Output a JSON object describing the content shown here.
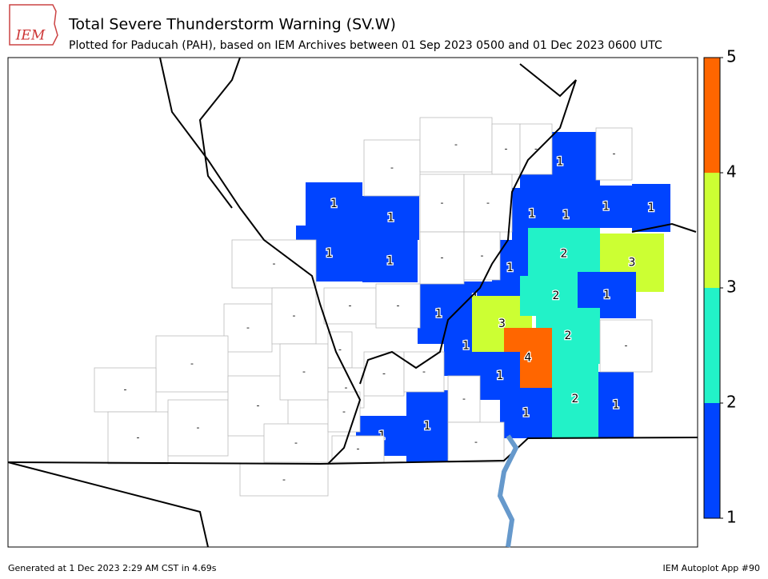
{
  "header": {
    "logo": "IEM",
    "title": "Total Severe Thunderstorm Warning (SV.W)",
    "subtitle": "Plotted for Paducah (PAH), based on IEM Archives  between 01 Sep 2023 0500 and 01 Dec 2023 0600 UTC"
  },
  "colorbar": {
    "ticks": [
      1,
      2,
      3,
      4,
      5
    ],
    "colors": [
      "#0044ff",
      "#22f2c8",
      "#ccff33",
      "#ff6600"
    ]
  },
  "counties": [
    {
      "value": 1
    },
    {
      "value": 1
    },
    {
      "value": 1
    },
    {
      "value": 1
    },
    {
      "value": 1
    },
    {
      "value": 1
    },
    {
      "value": 1
    },
    {
      "value": 3
    },
    {
      "value": 1
    },
    {
      "value": 1
    },
    {
      "value": 1
    },
    {
      "value": 1
    },
    {
      "value": 1
    },
    {
      "value": 1
    },
    {
      "value": 2
    },
    {
      "value": 3
    },
    {
      "value": 2
    },
    {
      "value": 1
    },
    {
      "value": 2
    },
    {
      "value": 4
    },
    {
      "value": 1
    },
    {
      "value": 1
    },
    {
      "value": 2
    },
    {
      "value": 1
    },
    {
      "value": 1
    },
    {
      "value": 1
    },
    {
      "label": "-"
    },
    {
      "label": "-"
    },
    {
      "label": "-"
    },
    {
      "label": "-"
    },
    {
      "label": "-"
    },
    {
      "label": "-"
    },
    {
      "label": "-"
    },
    {
      "label": "-"
    },
    {
      "label": "-"
    },
    {
      "label": "-"
    },
    {
      "label": "-"
    },
    {
      "label": "-"
    },
    {
      "label": "-"
    },
    {
      "label": "-"
    },
    {
      "label": "-"
    },
    {
      "label": "-"
    },
    {
      "label": "-"
    },
    {
      "label": "-"
    },
    {
      "label": "-"
    },
    {
      "label": "-"
    },
    {
      "label": "-"
    },
    {
      "label": "-"
    },
    {
      "label": "-"
    },
    {
      "label": "-"
    },
    {
      "label": "-"
    },
    {
      "label": "-"
    },
    {
      "label": "-"
    },
    {
      "label": "-"
    },
    {
      "label": "-"
    },
    {
      "label": "-"
    },
    {
      "label": "-"
    }
  ],
  "footer": {
    "left": "Generated at 1 Dec 2023 2:29 AM CST in 4.69s",
    "right": "IEM Autoplot App #90"
  }
}
